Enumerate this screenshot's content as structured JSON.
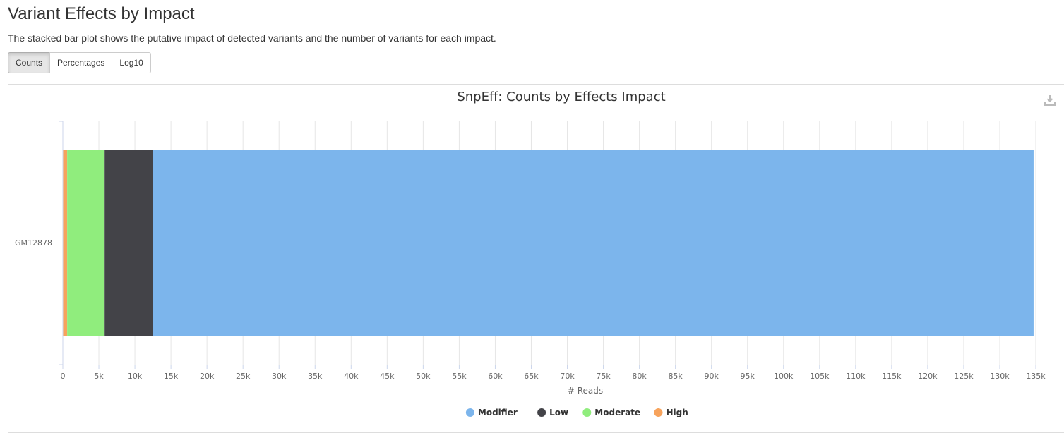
{
  "section": {
    "title": "Variant Effects by Impact",
    "description": "The stacked bar plot shows the putative impact of detected variants and the number of variants for each impact."
  },
  "toolbar": {
    "buttons": [
      {
        "label": "Counts",
        "active": true
      },
      {
        "label": "Percentages",
        "active": false
      },
      {
        "label": "Log10",
        "active": false
      }
    ]
  },
  "export_icon": "download-icon",
  "chart_data": {
    "type": "bar",
    "orientation": "horizontal",
    "stacked": true,
    "title": "SnpEff: Counts by Effects Impact",
    "xlabel": "# Reads",
    "ylabel": "",
    "categories": [
      "GM12878"
    ],
    "xlim": [
      0,
      135000
    ],
    "x_ticks": [
      "0",
      "5k",
      "10k",
      "15k",
      "20k",
      "25k",
      "30k",
      "35k",
      "40k",
      "45k",
      "50k",
      "55k",
      "60k",
      "65k",
      "70k",
      "75k",
      "80k",
      "85k",
      "90k",
      "95k",
      "100k",
      "105k",
      "110k",
      "115k",
      "120k",
      "125k",
      "130k",
      "135k"
    ],
    "stack_order": [
      "High",
      "Moderate",
      "Low",
      "Modifier"
    ],
    "series": [
      {
        "name": "Modifier",
        "color": "#7cb5ec",
        "values": [
          122200
        ]
      },
      {
        "name": "Low",
        "color": "#434348",
        "values": [
          6700
        ]
      },
      {
        "name": "Moderate",
        "color": "#90ed7d",
        "values": [
          5200
        ]
      },
      {
        "name": "High",
        "color": "#f7a35c",
        "values": [
          600
        ]
      }
    ],
    "grid": true,
    "legend_position": "bottom-center"
  }
}
